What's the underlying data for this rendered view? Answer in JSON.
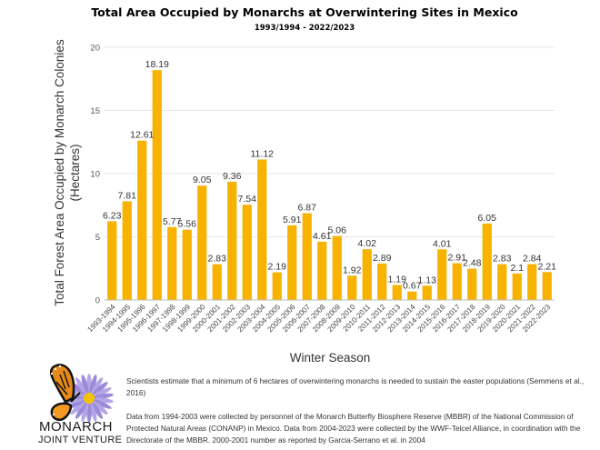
{
  "chart_data": {
    "type": "bar",
    "title": "Total Area Occupied by Monarchs at Overwintering Sites in Mexico",
    "subtitle": "1993/1994 - 2022/2023",
    "xlabel": "Winter Season",
    "ylabel_line1": "Total Forest Area Occupied by Monarch Colonies",
    "ylabel_line2": "(Hectares)",
    "ylim": [
      0,
      20
    ],
    "yticks": [
      0,
      5,
      10,
      15,
      20
    ],
    "grid": true,
    "bar_color": "#f7b300",
    "categories": [
      "1993-1994",
      "1994-1995",
      "1995-1996",
      "1996-1997",
      "1997-1998",
      "1998-1999",
      "1999-2000",
      "2000-2001",
      "2001-2002",
      "2002-2003",
      "2003-2004",
      "2004-2005",
      "2005-2006",
      "2006-2007",
      "2007-2008",
      "2008-2009",
      "2009-2010",
      "2010-2011",
      "2011-2012",
      "2012-2013",
      "2013-2014",
      "2014-2015",
      "2015-2016",
      "2016-2017",
      "2017-2018",
      "2018-2019",
      "2019-2020",
      "2020-2021",
      "2021-2022",
      "2022-2023"
    ],
    "values": [
      6.23,
      7.81,
      12.61,
      18.19,
      5.77,
      5.56,
      9.05,
      2.83,
      9.36,
      7.54,
      11.12,
      2.19,
      5.91,
      6.87,
      4.61,
      5.06,
      1.92,
      4.02,
      2.89,
      1.19,
      0.67,
      1.13,
      4.01,
      2.91,
      2.48,
      6.05,
      2.83,
      2.1,
      2.84,
      2.21
    ],
    "value_labels": [
      "6.23",
      "7.81",
      "12.61",
      "18.19",
      "5.77",
      "5.56",
      "9.05",
      "2.83",
      "9.36",
      "7.54",
      "11.12",
      "2.19",
      "5.91",
      "6.87",
      "4.61",
      "5.06",
      "1.92",
      "4.02",
      "2.89",
      "1.19",
      "0.67",
      "1.13",
      "4.01",
      "2.91",
      "2.48",
      "6.05",
      "2.83",
      "2.1",
      "2.84",
      "2.21"
    ]
  },
  "notes": {
    "note1": "Scientists estimate that a minimum of 6 hectares of overwintering monarchs is needed to sustain the easter populations (Semmens et al., 2016)",
    "note2": "Data from  1994-2003 were collected by personnel of the Monarch Butterfly Biosphere Reserve (MBBR) of the National Commission of Protected Natural Areas (CONANP) in Mexico. Data from 2004-2023 were collected by the WWF-Telcel Alliance, in coordination with the Directorate of the MBBR. 2000-2001 number as reported by Garcia-Serrano et al. in 2004"
  },
  "logo": {
    "line1": "MONARCH",
    "line2": "JOINT VENTURE"
  }
}
